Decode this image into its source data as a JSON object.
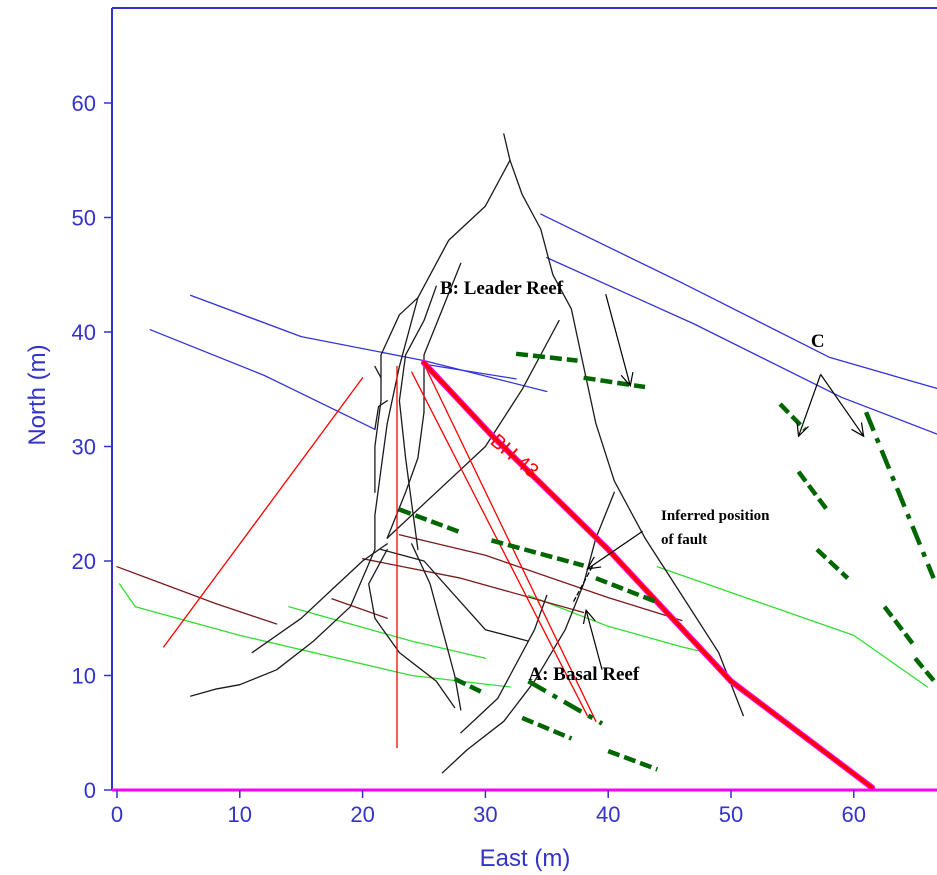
{
  "chart_data": {
    "type": "line",
    "title": "",
    "xlabel": "East (m)",
    "ylabel": "North (m)",
    "xlim": [
      0,
      67
    ],
    "ylim": [
      0,
      68
    ],
    "xticks": [
      0,
      10,
      20,
      30,
      40,
      50,
      60
    ],
    "yticks": [
      0,
      10,
      20,
      30,
      40,
      50,
      60
    ],
    "grid": false,
    "colors": {
      "axis": "#3333cc",
      "contour": "#1a1a1a",
      "blue_reef": "#3333dd",
      "green_reef": "#33dd33",
      "brown_reef": "#7a1a1a",
      "section": "#ff0000",
      "borehole": "#ff0000",
      "borehole_trace": "#ff00ff",
      "intersection": "#006600",
      "fault": "#000000"
    },
    "series": [
      {
        "kind": "blue_reef",
        "points": [
          [
            6,
            43.2
          ],
          [
            15,
            39.6
          ],
          [
            25,
            37.5
          ],
          [
            35,
            34.8
          ]
        ]
      },
      {
        "kind": "blue_reef",
        "points": [
          [
            2.7,
            40.2
          ],
          [
            12,
            36.2
          ],
          [
            21,
            31.5
          ]
        ]
      },
      {
        "kind": "blue_reef",
        "points": [
          [
            34.5,
            50.3
          ],
          [
            46,
            44.3
          ],
          [
            58,
            37.8
          ],
          [
            67,
            35
          ]
        ]
      },
      {
        "kind": "blue_reef",
        "points": [
          [
            35,
            46.5
          ],
          [
            47,
            40.7
          ],
          [
            59,
            34.3
          ],
          [
            67,
            31
          ]
        ]
      },
      {
        "kind": "blue_reef",
        "points": [
          [
            25,
            37.2
          ],
          [
            32.5,
            35.9
          ]
        ]
      },
      {
        "kind": "green_reef",
        "points": [
          [
            0.2,
            18
          ],
          [
            1.5,
            16
          ],
          [
            10,
            13.5
          ],
          [
            24,
            10
          ],
          [
            32,
            9
          ]
        ]
      },
      {
        "kind": "green_reef",
        "points": [
          [
            14,
            16
          ],
          [
            24,
            13
          ],
          [
            30,
            11.5
          ]
        ]
      },
      {
        "kind": "green_reef",
        "points": [
          [
            33.5,
            17
          ],
          [
            40,
            14.3
          ],
          [
            46,
            12.5
          ],
          [
            48,
            12
          ]
        ]
      },
      {
        "kind": "green_reef",
        "points": [
          [
            44,
            19.5
          ],
          [
            52,
            16.5
          ],
          [
            60,
            13.5
          ],
          [
            66,
            9
          ]
        ]
      },
      {
        "kind": "brown_reef",
        "points": [
          [
            0,
            19.5
          ],
          [
            8,
            16.3
          ],
          [
            13,
            14.5
          ]
        ]
      },
      {
        "kind": "brown_reef",
        "points": [
          [
            17.5,
            16.7
          ],
          [
            22,
            15
          ]
        ]
      },
      {
        "kind": "brown_reef",
        "points": [
          [
            23,
            22.3
          ],
          [
            30,
            20.5
          ],
          [
            40,
            16.8
          ],
          [
            46,
            14.8
          ]
        ]
      },
      {
        "kind": "brown_reef",
        "points": [
          [
            20,
            20.2
          ],
          [
            28,
            18.5
          ],
          [
            38,
            15.5
          ]
        ]
      },
      {
        "kind": "contour",
        "points": [
          [
            31.5,
            57.3
          ],
          [
            32,
            55
          ],
          [
            30,
            51
          ],
          [
            27,
            48
          ],
          [
            24.5,
            43
          ],
          [
            23,
            37
          ],
          [
            22,
            32
          ],
          [
            21.5,
            28
          ],
          [
            21,
            24
          ],
          [
            21,
            21
          ],
          [
            19,
            16
          ],
          [
            16,
            13
          ],
          [
            13,
            10.5
          ],
          [
            10,
            9.2
          ],
          [
            8,
            8.8
          ],
          [
            6,
            8.2
          ]
        ]
      },
      {
        "kind": "contour",
        "points": [
          [
            32,
            55
          ],
          [
            33,
            52
          ],
          [
            34.5,
            49
          ],
          [
            35.5,
            45
          ],
          [
            37,
            42
          ],
          [
            38,
            37
          ],
          [
            39,
            32
          ],
          [
            40.5,
            27
          ],
          [
            43,
            22
          ],
          [
            46,
            17
          ],
          [
            49,
            12
          ],
          [
            51,
            6.5
          ]
        ]
      },
      {
        "kind": "contour",
        "points": [
          [
            24.5,
            43
          ],
          [
            23,
            41.5
          ],
          [
            21.5,
            38
          ],
          [
            21.5,
            34
          ],
          [
            21,
            30
          ],
          [
            21,
            26
          ]
        ]
      },
      {
        "kind": "contour",
        "points": [
          [
            26,
            44
          ],
          [
            25,
            41
          ],
          [
            23.5,
            38
          ],
          [
            23,
            34
          ],
          [
            23.5,
            29
          ],
          [
            24,
            25
          ],
          [
            24.5,
            21
          ]
        ]
      },
      {
        "kind": "contour",
        "points": [
          [
            28,
            46
          ],
          [
            26.5,
            42
          ],
          [
            25,
            38
          ],
          [
            25,
            33
          ],
          [
            24.5,
            29
          ],
          [
            23.5,
            26
          ],
          [
            22,
            22
          ]
        ]
      },
      {
        "kind": "contour",
        "points": [
          [
            22,
            22
          ],
          [
            26,
            26
          ],
          [
            30,
            30
          ],
          [
            33,
            35
          ],
          [
            35,
            39
          ],
          [
            36,
            41
          ]
        ]
      },
      {
        "kind": "contour",
        "points": [
          [
            21.5,
            21
          ],
          [
            25,
            20
          ],
          [
            27.5,
            17
          ],
          [
            30,
            14
          ],
          [
            33.5,
            13
          ]
        ]
      },
      {
        "kind": "contour",
        "points": [
          [
            40.5,
            26
          ],
          [
            39,
            22
          ],
          [
            38,
            18
          ],
          [
            36.5,
            14
          ],
          [
            34,
            9.5
          ],
          [
            31.5,
            6
          ],
          [
            28.5,
            3.5
          ],
          [
            26.5,
            1.5
          ]
        ]
      },
      {
        "kind": "contour",
        "points": [
          [
            22,
            21
          ],
          [
            20.5,
            18
          ],
          [
            21,
            15
          ],
          [
            23,
            12
          ],
          [
            26,
            9.5
          ],
          [
            27.5,
            7.2
          ]
        ]
      },
      {
        "kind": "contour",
        "points": [
          [
            24,
            21.5
          ],
          [
            25.5,
            18
          ],
          [
            26.5,
            14
          ],
          [
            27.5,
            10
          ],
          [
            28,
            7
          ]
        ]
      },
      {
        "kind": "contour",
        "points": [
          [
            35,
            17
          ],
          [
            34,
            14
          ],
          [
            32,
            10
          ],
          [
            31,
            8
          ],
          [
            29.5,
            6.5
          ],
          [
            28,
            5
          ]
        ]
      },
      {
        "kind": "contour",
        "points": [
          [
            22,
            21.5
          ],
          [
            20,
            20
          ],
          [
            18,
            18
          ],
          [
            15,
            15
          ],
          [
            11,
            12
          ]
        ]
      },
      {
        "kind": "contour",
        "points": [
          [
            21,
            37
          ],
          [
            21.5,
            36
          ]
        ]
      },
      {
        "kind": "contour",
        "points": [
          [
            21,
            31.5
          ],
          [
            21.3,
            33.5
          ],
          [
            22,
            34
          ]
        ]
      },
      {
        "kind": "section",
        "points": [
          [
            20,
            36
          ],
          [
            3.8,
            12.5
          ]
        ]
      },
      {
        "kind": "section",
        "points": [
          [
            22.8,
            37
          ],
          [
            22.8,
            3.7
          ]
        ]
      },
      {
        "kind": "section",
        "points": [
          [
            24,
            36.5
          ],
          [
            38.3,
            6.5
          ]
        ]
      },
      {
        "kind": "section",
        "points": [
          [
            25,
            37.2
          ],
          [
            39,
            6
          ]
        ]
      },
      {
        "kind": "borehole_trace",
        "points": [
          [
            25,
            37.3
          ],
          [
            30.5,
            31
          ],
          [
            40,
            21
          ],
          [
            50,
            9.5
          ],
          [
            61.5,
            0.2
          ]
        ]
      },
      {
        "kind": "borehole",
        "points": [
          [
            25,
            37.3
          ],
          [
            30.5,
            31
          ],
          [
            40,
            21
          ],
          [
            50,
            9.5
          ],
          [
            61.5,
            0.2
          ]
        ]
      },
      {
        "kind": "fault",
        "points": [
          [
            37.2,
            16.5
          ],
          [
            38.7,
            19.5
          ]
        ]
      },
      {
        "kind": "intersection",
        "dash": "long",
        "points": [
          [
            32.5,
            38.1
          ],
          [
            37.5,
            37.5
          ]
        ]
      },
      {
        "kind": "intersection",
        "dash": "long",
        "points": [
          [
            38,
            36
          ],
          [
            43,
            35.2
          ]
        ]
      },
      {
        "kind": "intersection",
        "dash": "long",
        "points": [
          [
            23,
            24.5
          ],
          [
            28,
            22.5
          ]
        ]
      },
      {
        "kind": "intersection",
        "dash": "long",
        "points": [
          [
            30.5,
            21.8
          ],
          [
            38,
            19.6
          ]
        ]
      },
      {
        "kind": "intersection",
        "dash": "long",
        "points": [
          [
            39,
            18.5
          ],
          [
            44,
            16.4
          ]
        ]
      },
      {
        "kind": "intersection",
        "dash": "long",
        "points": [
          [
            27.5,
            9.7
          ],
          [
            30,
            8.4
          ]
        ]
      },
      {
        "kind": "intersection",
        "dash": "long",
        "points": [
          [
            33,
            6.3
          ],
          [
            37,
            4.5
          ]
        ]
      },
      {
        "kind": "intersection",
        "dash": "long",
        "points": [
          [
            40,
            3.4
          ],
          [
            44,
            1.8
          ]
        ]
      },
      {
        "kind": "intersection",
        "dash": "long",
        "points": [
          [
            54,
            33.7
          ],
          [
            56,
            31.5
          ]
        ]
      },
      {
        "kind": "intersection",
        "dash": "long",
        "points": [
          [
            55.5,
            27.8
          ],
          [
            57.8,
            24.5
          ]
        ]
      },
      {
        "kind": "intersection",
        "dash": "long",
        "points": [
          [
            57,
            21
          ],
          [
            59.5,
            18.5
          ]
        ]
      },
      {
        "kind": "intersection",
        "dash": "long",
        "points": [
          [
            62.5,
            16
          ],
          [
            65,
            12.5
          ]
        ]
      },
      {
        "kind": "intersection",
        "dash": "long",
        "points": [
          [
            65,
            11.5
          ],
          [
            66.7,
            9.3
          ]
        ]
      },
      {
        "kind": "intersection",
        "dash": "dashdot",
        "points": [
          [
            33.5,
            9.5
          ],
          [
            39.5,
            5.8
          ]
        ]
      },
      {
        "kind": "intersection",
        "dash": "dashdot",
        "points": [
          [
            61,
            33
          ],
          [
            66.5,
            18.5
          ]
        ]
      }
    ],
    "annotations": [
      {
        "text": "B: Leader Reef",
        "x": 26.3,
        "y": 43.3,
        "size": "large",
        "anchor": "start"
      },
      {
        "text": "C",
        "x": 56.5,
        "y": 38.7,
        "size": "large",
        "anchor": "start"
      },
      {
        "text": "Inferred position",
        "x": 44.3,
        "y": 23.6,
        "size": "small",
        "anchor": "start"
      },
      {
        "text": "of fault",
        "x": 44.3,
        "y": 21.5,
        "size": "small",
        "anchor": "start"
      },
      {
        "text": "A: Basal Reef",
        "x": 33.5,
        "y": 9.6,
        "size": "large",
        "anchor": "start"
      },
      {
        "text": "BH 43",
        "x": 30.3,
        "y": 30.3,
        "size": "borehole",
        "anchor": "start",
        "rotate": 40
      }
    ],
    "arrows": [
      {
        "from": [
          39.8,
          43.3
        ],
        "to": [
          41.8,
          35.3
        ]
      },
      {
        "from": [
          57.3,
          36.3
        ],
        "to": [
          55.5,
          30.9
        ]
      },
      {
        "from": [
          57.3,
          36.3
        ],
        "to": [
          60.8,
          30.9
        ]
      },
      {
        "from": [
          42.8,
          22.6
        ],
        "to": [
          38.3,
          19.3
        ]
      },
      {
        "from": [
          39.5,
          10.5
        ],
        "to": [
          38.2,
          15.7
        ]
      }
    ]
  }
}
